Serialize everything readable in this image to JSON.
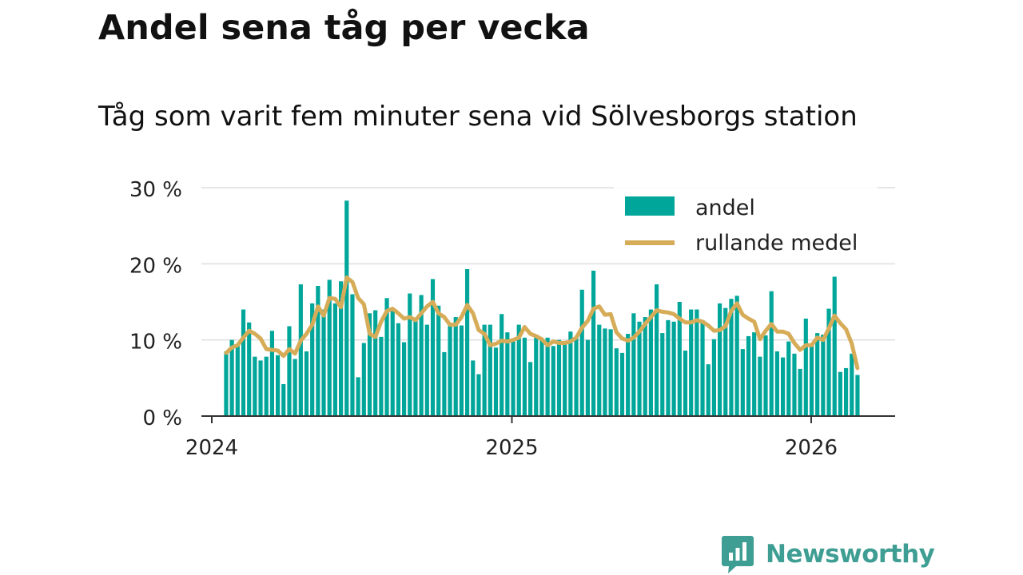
{
  "title": "Andel sena tåg per vecka",
  "subtitle": "Tåg som varit fem minuter sena vid Sölvesborgs station",
  "brand": {
    "name": "Newsworthy",
    "icon": "newsworthy-logo-icon",
    "color": "#3e9e93"
  },
  "colors": {
    "bar": "#00a69a",
    "line": "#d6ac58",
    "grid": "#dddddd",
    "axis": "#333333",
    "text": "#222222"
  },
  "chart_data": {
    "type": "bar",
    "title": "Andel sena tåg per vecka",
    "subtitle": "Tåg som varit fem minuter sena vid Sölvesborgs station",
    "x_unit": "week",
    "start_week": "2024-W03",
    "xlim": [
      "2024-01-01",
      "2026-04-15"
    ],
    "ylim": [
      0,
      30
    ],
    "yticks": [
      0,
      10,
      20,
      30
    ],
    "ytick_labels": [
      "0 %",
      "10 %",
      "20 %",
      "30 %"
    ],
    "xticks": [
      "2024-01-01",
      "2025-01-01",
      "2026-01-01"
    ],
    "xtick_labels": [
      "2024",
      "2025",
      "2026"
    ],
    "grid": true,
    "legend": {
      "position": "top-right",
      "entries": [
        "andel",
        "rullande medel"
      ]
    },
    "series": [
      {
        "name": "andel",
        "kind": "bar",
        "values": [
          8.5,
          10.0,
          9.2,
          14.0,
          12.3,
          7.8,
          7.3,
          7.8,
          11.2,
          8.0,
          4.2,
          11.8,
          7.5,
          17.3,
          8.5,
          14.8,
          17.1,
          14.0,
          17.9,
          14.8,
          17.7,
          28.3,
          16.0,
          5.1,
          9.6,
          13.5,
          13.9,
          10.4,
          15.5,
          14.0,
          12.2,
          9.7,
          16.1,
          12.5,
          15.9,
          12.0,
          18.0,
          14.5,
          8.4,
          12.0,
          13.0,
          11.9,
          19.3,
          7.3,
          5.5,
          12.0,
          12.0,
          9.0,
          13.4,
          11.0,
          10.1,
          12.0,
          10.3,
          7.1,
          10.7,
          10.0,
          10.3,
          9.2,
          10.0,
          9.8,
          11.1,
          10.2,
          16.6,
          10.0,
          19.1,
          12.0,
          11.5,
          11.4,
          8.9,
          8.3,
          10.8,
          13.5,
          12.4,
          13.0,
          14.0,
          17.3,
          10.9,
          12.6,
          12.4,
          15.0,
          8.6,
          14.0,
          14.0,
          12.6,
          6.8,
          10.1,
          14.8,
          14.2,
          15.4,
          15.8,
          8.8,
          10.5,
          11.0,
          7.8,
          10.6,
          16.4,
          8.5,
          7.7,
          9.8,
          8.2,
          6.2,
          12.8,
          9.5,
          10.9,
          10.7,
          14.1,
          18.3,
          5.8,
          6.3,
          8.2,
          5.4
        ]
      },
      {
        "name": "rullande medel",
        "kind": "line",
        "values": [
          8.3,
          9.0,
          9.3,
          10.3,
          11.2,
          10.8,
          10.2,
          8.8,
          8.7,
          8.6,
          7.9,
          8.8,
          8.2,
          9.9,
          10.8,
          12.0,
          14.4,
          13.2,
          15.5,
          15.4,
          14.3,
          18.2,
          17.6,
          15.5,
          14.7,
          10.8,
          10.4,
          12.4,
          13.8,
          14.1,
          13.5,
          12.8,
          13.0,
          12.6,
          13.5,
          14.4,
          15.0,
          13.5,
          13.0,
          12.0,
          12.0,
          13.0,
          14.6,
          13.5,
          11.3,
          10.8,
          9.3,
          9.5,
          9.9,
          9.8,
          10.0,
          10.3,
          11.7,
          10.8,
          10.5,
          10.1,
          9.3,
          9.8,
          9.6,
          9.6,
          9.8,
          10.3,
          11.6,
          12.5,
          14.1,
          14.4,
          13.3,
          13.4,
          11.0,
          10.2,
          9.9,
          10.3,
          11.1,
          12.1,
          13.0,
          13.9,
          13.7,
          13.6,
          13.4,
          12.8,
          12.3,
          12.3,
          12.6,
          12.4,
          11.9,
          11.2,
          11.3,
          11.8,
          13.8,
          14.8,
          13.3,
          12.8,
          12.4,
          10.1,
          11.2,
          12.1,
          11.1,
          11.1,
          10.8,
          9.6,
          8.7,
          9.3,
          9.3,
          10.3,
          10.0,
          11.5,
          13.2,
          12.2,
          11.4,
          9.5,
          6.3
        ]
      }
    ]
  }
}
